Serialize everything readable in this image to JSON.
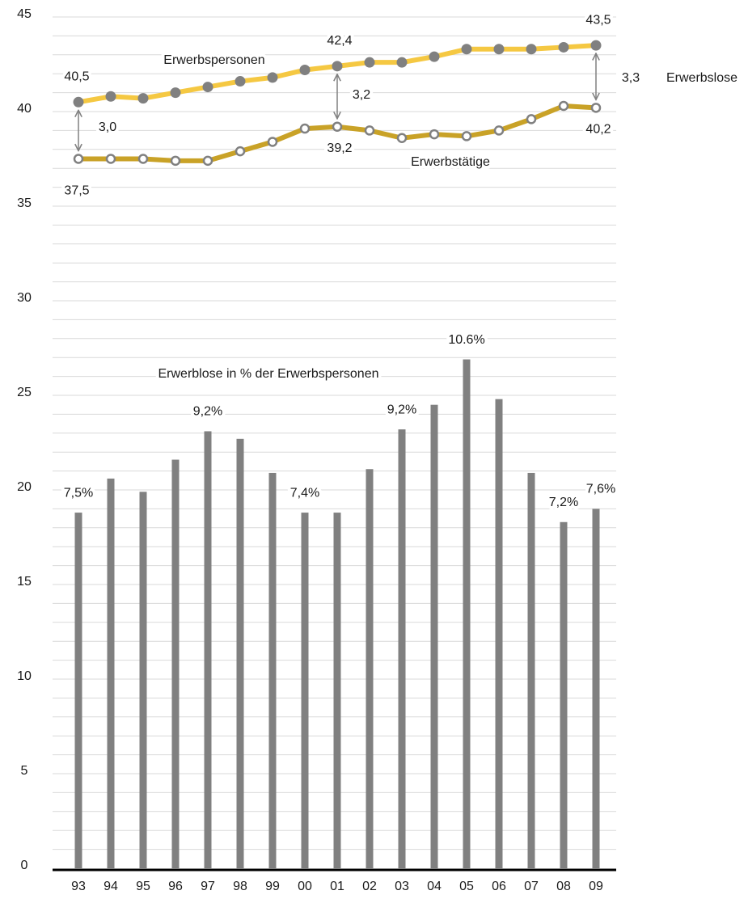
{
  "chart_data": {
    "type": "bar_line",
    "categories": [
      "93",
      "94",
      "95",
      "96",
      "97",
      "98",
      "99",
      "00",
      "01",
      "02",
      "03",
      "04",
      "05",
      "06",
      "07",
      "08",
      "09"
    ],
    "ylim": [
      0,
      45
    ],
    "yticks": [
      0,
      5,
      10,
      15,
      20,
      25,
      30,
      35,
      40,
      45
    ],
    "minor_yticks": [
      1,
      2,
      3,
      4,
      6,
      7,
      8,
      9,
      11,
      12,
      13,
      14,
      16,
      17,
      18,
      19,
      21,
      22,
      23,
      24,
      26,
      27,
      28,
      29,
      31,
      32,
      33,
      34,
      36,
      37,
      38,
      39,
      41,
      42,
      43,
      44
    ],
    "grid": true,
    "bars": {
      "name": "Erwerblose in % der Erwerbspersonen",
      "color": "#808080",
      "values": [
        18.8,
        20.6,
        19.9,
        21.6,
        23.1,
        22.7,
        20.9,
        18.8,
        18.8,
        21.1,
        23.2,
        24.5,
        26.9,
        24.8,
        20.9,
        18.3,
        19.0
      ],
      "value_labels": [
        "7,5%",
        null,
        null,
        null,
        "9,2%",
        null,
        null,
        "7,4%",
        null,
        null,
        "9,2%",
        null,
        "10.6%",
        null,
        null,
        "7,2%",
        "7,6%"
      ]
    },
    "series": [
      {
        "name": "Erwerbspersonen",
        "color": "#f5c842",
        "marker_color": "#808080",
        "values": [
          40.5,
          40.8,
          40.7,
          41.0,
          41.3,
          41.6,
          41.8,
          42.2,
          42.4,
          42.6,
          42.6,
          42.9,
          43.3,
          43.3,
          43.3,
          43.4,
          43.5
        ],
        "value_labels": [
          "40,5",
          null,
          null,
          null,
          null,
          null,
          null,
          null,
          "42,4",
          null,
          null,
          null,
          null,
          null,
          null,
          null,
          "43,5"
        ]
      },
      {
        "name": "Erwerbstätige",
        "color": "#c9a227",
        "marker_color": "#808080",
        "values": [
          37.5,
          37.5,
          37.5,
          37.4,
          37.4,
          37.9,
          38.4,
          39.1,
          39.2,
          39.0,
          38.6,
          38.8,
          38.7,
          39.0,
          39.6,
          40.3,
          40.2
        ],
        "value_labels": [
          "37,5",
          null,
          null,
          null,
          null,
          null,
          null,
          null,
          "39,2",
          null,
          null,
          null,
          null,
          null,
          null,
          null,
          "40,2"
        ]
      }
    ],
    "annotations": [
      "3,0",
      "3,2",
      "3,3",
      "Erwerbslose"
    ]
  }
}
